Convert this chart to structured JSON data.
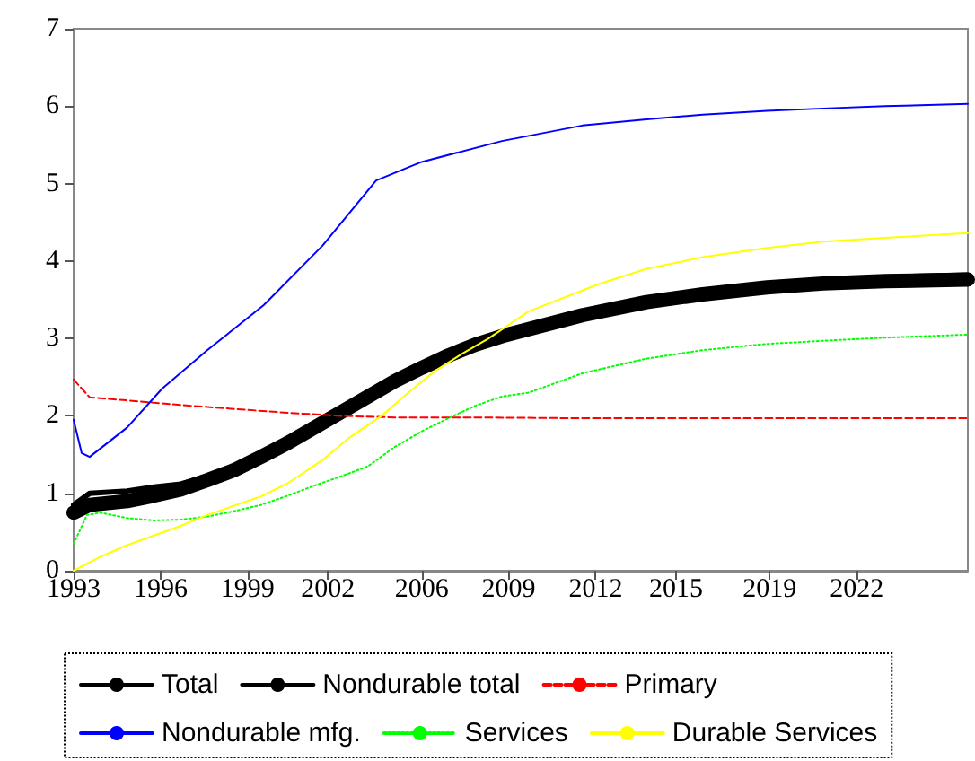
{
  "chart_data": {
    "type": "line",
    "xlim": [
      1993,
      2026.4
    ],
    "ylim": [
      0,
      7
    ],
    "yticks": [
      0,
      1,
      2,
      3,
      4,
      5,
      6,
      7
    ],
    "xticks": [
      {
        "value": 1993,
        "label": "1993"
      },
      {
        "value": 1996.25,
        "label": "1996"
      },
      {
        "value": 1999.5,
        "label": "1999"
      },
      {
        "value": 2002.5,
        "label": "2002"
      },
      {
        "value": 2006,
        "label": "2006"
      },
      {
        "value": 2009.25,
        "label": "2009"
      },
      {
        "value": 2012.5,
        "label": "2012"
      },
      {
        "value": 2015.5,
        "label": "2015"
      },
      {
        "value": 2019,
        "label": "2019"
      },
      {
        "value": 2022.25,
        "label": "2022"
      }
    ],
    "grid": false,
    "legend": "bottom",
    "marker": "none",
    "series": [
      {
        "name": "Total",
        "color": "#000000",
        "line_style": "solid",
        "x": [
          1993,
          1993.6,
          1995,
          1996,
          1997,
          1998,
          1999,
          2000,
          2001,
          2002,
          2003,
          2004,
          2005,
          2006,
          2007,
          2008,
          2009,
          2010,
          2012,
          2014.4,
          2016.5,
          2018.9,
          2021,
          2023.3,
          2026.4
        ],
        "values": [
          0.75,
          0.85,
          0.9,
          0.97,
          1.05,
          1.17,
          1.3,
          1.47,
          1.65,
          1.85,
          2.05,
          2.25,
          2.45,
          2.62,
          2.78,
          2.92,
          3.03,
          3.12,
          3.3,
          3.47,
          3.57,
          3.66,
          3.71,
          3.74,
          3.76
        ]
      },
      {
        "name": "Nondurable total",
        "color": "#000000",
        "line_style": "solid",
        "x": [
          1993,
          1993.6,
          1995,
          1996,
          1997,
          1998,
          1999,
          2000,
          2001,
          2002,
          2003,
          2004,
          2005,
          2006,
          2007,
          2008,
          2009,
          2010,
          2012,
          2014.4,
          2016.5,
          2018.9,
          2021,
          2023.3,
          2026.4
        ],
        "values": [
          0.85,
          1.0,
          1.03,
          1.08,
          1.12,
          1.22,
          1.34,
          1.5,
          1.68,
          1.88,
          2.08,
          2.28,
          2.48,
          2.65,
          2.81,
          2.95,
          3.06,
          3.15,
          3.33,
          3.5,
          3.61,
          3.7,
          3.75,
          3.79,
          3.82
        ]
      },
      {
        "name": "Primary",
        "color": "#ff0000",
        "line_style": "dashed",
        "x": [
          1993,
          1993.6,
          1995,
          1997,
          1999,
          2001,
          2003,
          2005,
          2008,
          2011.7,
          2026.4
        ],
        "values": [
          2.47,
          2.24,
          2.2,
          2.14,
          2.09,
          2.04,
          2.0,
          1.98,
          1.98,
          1.97,
          1.97
        ]
      },
      {
        "name": "Nondurable mfg.",
        "color": "#0000ff",
        "line_style": "solid",
        "x": [
          1993,
          1993.3,
          1993.6,
          1995,
          1996.3,
          1998,
          2000.1,
          2002.3,
          2004.3,
          2006,
          2009,
          2012,
          2014.4,
          2016.5,
          2018.9,
          2021,
          2023.3,
          2026.4
        ],
        "values": [
          1.95,
          1.52,
          1.47,
          1.85,
          2.35,
          2.85,
          3.43,
          4.2,
          5.04,
          5.28,
          5.55,
          5.75,
          5.83,
          5.89,
          5.94,
          5.97,
          6.0,
          6.03
        ]
      },
      {
        "name": "Services",
        "color": "#00ff00",
        "line_style": "dotted",
        "x": [
          1993,
          1993.5,
          1994,
          1995,
          1996,
          1997,
          1998,
          1999,
          2000,
          2001,
          2002,
          2003,
          2004,
          2005,
          2006,
          2007,
          2008,
          2009,
          2010,
          2012,
          2014.4,
          2016.5,
          2018.9,
          2021,
          2023.3,
          2026.4
        ],
        "values": [
          0.35,
          0.72,
          0.75,
          0.68,
          0.65,
          0.66,
          0.7,
          0.77,
          0.85,
          0.97,
          1.1,
          1.22,
          1.35,
          1.6,
          1.8,
          1.97,
          2.13,
          2.25,
          2.3,
          2.55,
          2.74,
          2.85,
          2.93,
          2.97,
          3.01,
          3.05
        ]
      },
      {
        "name": "Durable Services",
        "color": "#ffff00",
        "line_style": "solid",
        "x": [
          1993,
          1994,
          1995,
          1997,
          1998,
          2000,
          2001,
          2002.3,
          2003.3,
          2004.5,
          2005.5,
          2006.5,
          2007.5,
          2008.5,
          2010,
          2012.6,
          2014.4,
          2016.5,
          2018.9,
          2021,
          2023.3,
          2026.4
        ],
        "values": [
          0.0,
          0.18,
          0.33,
          0.58,
          0.72,
          0.96,
          1.13,
          1.43,
          1.72,
          2.0,
          2.3,
          2.58,
          2.8,
          3.0,
          3.35,
          3.7,
          3.9,
          4.05,
          4.17,
          4.25,
          4.3,
          4.36
        ]
      }
    ]
  }
}
